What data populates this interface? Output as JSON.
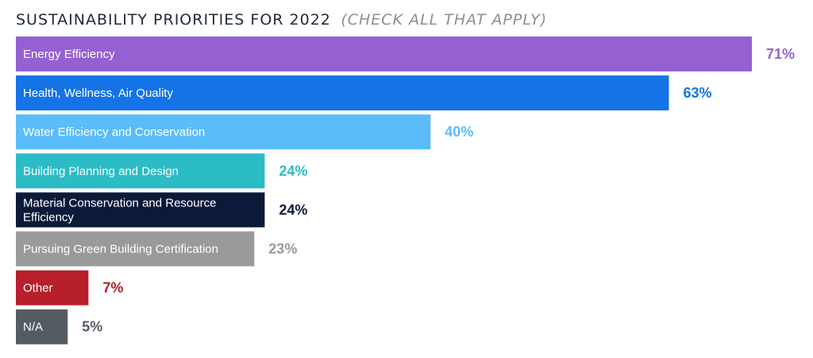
{
  "chart_data": {
    "type": "bar",
    "orientation": "horizontal",
    "title": "SUSTAINABILITY PRIORITIES FOR 2022",
    "subtitle": "(CHECK ALL THAT APPLY)",
    "unit": "%",
    "categories": [
      "Energy Efficiency",
      "Health, Wellness, Air Quality",
      "Water Efficiency and Conservation",
      "Building Planning and Design",
      "Material Conservation and Resource Efficiency",
      "Pursuing Green Building Certification",
      "Other",
      "N/A"
    ],
    "category_lines": [
      [
        "Energy Efficiency"
      ],
      [
        "Health, Wellness, Air Quality"
      ],
      [
        "Water Efficiency and Conservation"
      ],
      [
        "Building Planning and Design"
      ],
      [
        "Material Conservation and Resource",
        "Efficiency"
      ],
      [
        "Pursuing Green Building Certification"
      ],
      [
        "Other"
      ],
      [
        "N/A"
      ]
    ],
    "values": [
      71,
      63,
      40,
      24,
      24,
      23,
      7,
      5
    ],
    "value_labels": [
      "71%",
      "63%",
      "40%",
      "24%",
      "24%",
      "23%",
      "7%",
      "5%"
    ],
    "bar_colors": [
      "#9560d2",
      "#1473e6",
      "#5bbcfa",
      "#2bbcc6",
      "#0c1a3a",
      "#9b9a9b",
      "#b71f2a",
      "#545b62"
    ],
    "label_colors": [
      "#9560d2",
      "#1473e6",
      "#5bbcfa",
      "#2bbcc6",
      "#0c1a3a",
      "#9b9a9b",
      "#b71f2a",
      "#545b62"
    ],
    "xlim": [
      0,
      71
    ],
    "grid": false,
    "legend": "none",
    "axes_visible": false
  }
}
